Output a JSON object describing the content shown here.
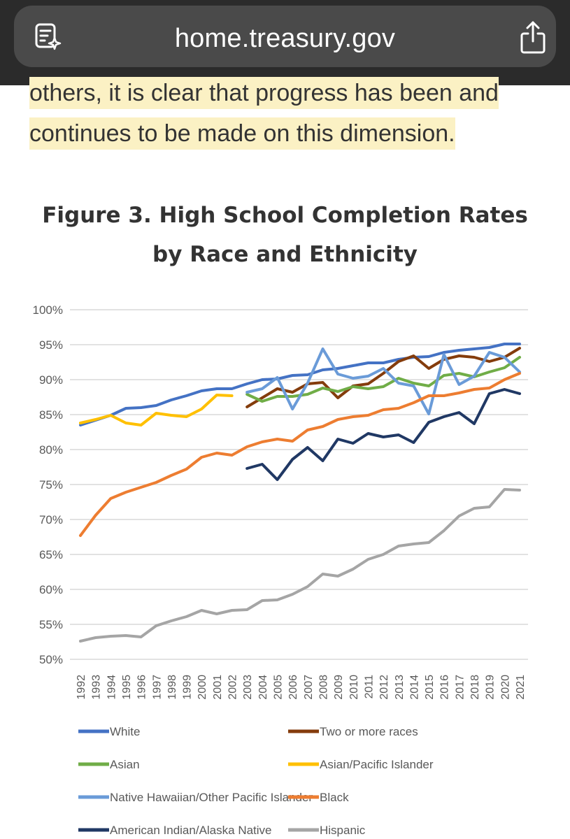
{
  "browser": {
    "url": "home.treasury.gov"
  },
  "article": {
    "line1": "others, it is clear that progress has been and",
    "line2": "continues to be made on this dimension."
  },
  "chart_data": {
    "type": "line",
    "title": "Figure 3. High School Completion Rates by Race and Ethnicity",
    "xlabel": "",
    "ylabel": "",
    "ylim": [
      50,
      100
    ],
    "yticks": [
      "50%",
      "55%",
      "60%",
      "65%",
      "70%",
      "75%",
      "80%",
      "85%",
      "90%",
      "95%",
      "100%"
    ],
    "grid": true,
    "legend_position": "bottom",
    "x": [
      1992,
      1993,
      1994,
      1995,
      1996,
      1997,
      1998,
      1999,
      2000,
      2001,
      2002,
      2003,
      2004,
      2005,
      2006,
      2007,
      2008,
      2009,
      2010,
      2011,
      2012,
      2013,
      2014,
      2015,
      2016,
      2017,
      2018,
      2019,
      2020,
      2021
    ],
    "series": [
      {
        "name": "White",
        "color": "#4472c4",
        "values": [
          83.5,
          84.2,
          84.9,
          85.9,
          86.0,
          86.3,
          87.1,
          87.7,
          88.4,
          88.7,
          88.7,
          89.4,
          90.0,
          90.1,
          90.6,
          90.7,
          91.4,
          91.6,
          92.0,
          92.4,
          92.4,
          92.9,
          93.2,
          93.3,
          93.9,
          94.2,
          94.4,
          94.6,
          95.1,
          95.1
        ]
      },
      {
        "name": "Two or more races",
        "color": "#843c0c",
        "values": [
          null,
          null,
          null,
          null,
          null,
          null,
          null,
          null,
          null,
          null,
          null,
          86.1,
          87.4,
          88.7,
          88.2,
          89.4,
          89.6,
          87.4,
          89.1,
          89.4,
          90.9,
          92.6,
          93.4,
          91.6,
          92.9,
          93.4,
          93.2,
          92.6,
          93.2,
          94.5
        ]
      },
      {
        "name": "Asian",
        "color": "#70ad47",
        "values": [
          null,
          null,
          null,
          null,
          null,
          null,
          null,
          null,
          null,
          null,
          null,
          87.9,
          86.9,
          87.6,
          87.6,
          87.9,
          88.8,
          88.3,
          89.0,
          88.7,
          89.0,
          90.2,
          89.5,
          89.1,
          90.6,
          90.9,
          90.4,
          91.1,
          91.7,
          93.2
        ]
      },
      {
        "name": "Asian/Pacific Islander",
        "color": "#ffc000",
        "values": [
          83.8,
          84.3,
          84.9,
          83.8,
          83.5,
          85.2,
          84.9,
          84.7,
          85.8,
          87.8,
          87.7,
          null,
          null,
          null,
          null,
          null,
          null,
          null,
          null,
          null,
          null,
          null,
          null,
          null,
          null,
          null,
          null,
          null,
          null,
          null
        ]
      },
      {
        "name": "Native Hawaiian/Other Pacific Islander",
        "color": "#6a9bd8",
        "values": [
          null,
          null,
          null,
          null,
          null,
          null,
          null,
          null,
          null,
          null,
          null,
          88.2,
          88.7,
          90.3,
          85.8,
          89.5,
          94.4,
          90.8,
          90.2,
          90.5,
          91.6,
          89.5,
          89.1,
          85.1,
          93.6,
          89.3,
          90.5,
          93.9,
          93.2,
          91.1
        ]
      },
      {
        "name": "Black",
        "color": "#ed7d31",
        "values": [
          67.7,
          70.6,
          73.0,
          73.9,
          74.6,
          75.3,
          76.3,
          77.2,
          78.9,
          79.5,
          79.2,
          80.4,
          81.1,
          81.5,
          81.2,
          82.8,
          83.3,
          84.3,
          84.7,
          84.9,
          85.7,
          85.9,
          86.7,
          87.7,
          87.7,
          88.1,
          88.6,
          88.8,
          90.0,
          90.9
        ]
      },
      {
        "name": "American Indian/Alaska Native",
        "color": "#203864",
        "values": [
          null,
          null,
          null,
          null,
          null,
          null,
          null,
          null,
          null,
          null,
          null,
          77.3,
          77.9,
          75.7,
          78.6,
          80.3,
          78.4,
          81.5,
          80.9,
          82.3,
          81.8,
          82.1,
          81.0,
          83.9,
          84.7,
          85.3,
          83.7,
          88.0,
          88.6,
          88.0
        ]
      },
      {
        "name": "Hispanic",
        "color": "#a5a5a5",
        "values": [
          52.6,
          53.1,
          53.3,
          53.4,
          53.2,
          54.8,
          55.5,
          56.1,
          57.0,
          56.5,
          57.0,
          57.1,
          58.4,
          58.5,
          59.3,
          60.4,
          62.2,
          61.9,
          62.9,
          64.3,
          65.0,
          66.2,
          66.5,
          66.7,
          68.4,
          70.5,
          71.6,
          71.8,
          74.3,
          74.2
        ]
      }
    ]
  }
}
